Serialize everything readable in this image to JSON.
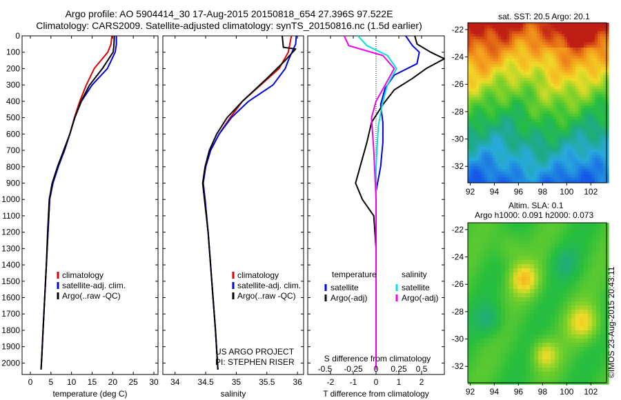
{
  "header": {
    "line1": "Argo profile: AO 5904414_30 17-Aug-2015 20150818_654 27.396S 97.522E",
    "line2": "Climatology: CARS2009. Satellite-adjusted climatology: synTS_20150816.nc (1.5d earlier)"
  },
  "colors": {
    "climatology": "#e00000",
    "satellite": "#0000dd",
    "argo": "#000000",
    "sat_salinity": "#00e0e0",
    "argo_salinity": "#ee00ee"
  },
  "chart_data": [
    {
      "type": "line",
      "id": "temperature",
      "xlabel": "temperature (deg C)",
      "ylabel": "",
      "xlim": [
        -2,
        31
      ],
      "ylim": [
        2070,
        0
      ],
      "xticks": [
        0,
        5,
        10,
        15,
        20,
        25,
        30
      ],
      "yticks": [
        0,
        100,
        200,
        300,
        400,
        500,
        600,
        700,
        800,
        900,
        1000,
        1100,
        1200,
        1300,
        1400,
        1500,
        1600,
        1700,
        1800,
        1900,
        2000
      ],
      "grid": false,
      "legend": [
        "climatology",
        "satellite-adj. clim.",
        "Argo(..raw -QC)"
      ],
      "series": [
        {
          "name": "climatology",
          "points": [
            [
              19.8,
              0
            ],
            [
              19.6,
              50
            ],
            [
              18.8,
              100
            ],
            [
              15.5,
              200
            ],
            [
              13.6,
              300
            ],
            [
              12.0,
              400
            ],
            [
              10.7,
              500
            ],
            [
              9.6,
              600
            ],
            [
              8.3,
              700
            ],
            [
              6.7,
              800
            ],
            [
              5.4,
              900
            ],
            [
              4.7,
              1000
            ],
            [
              4.3,
              1200
            ],
            [
              3.9,
              1400
            ],
            [
              3.5,
              1600
            ],
            [
              3.1,
              1800
            ],
            [
              2.8,
              1950
            ],
            [
              2.6,
              2040
            ]
          ]
        },
        {
          "name": "satellite-adj. clim.",
          "points": [
            [
              20.9,
              0
            ],
            [
              20.9,
              50
            ],
            [
              20.6,
              100
            ],
            [
              18.7,
              200
            ],
            [
              15.0,
              300
            ],
            [
              12.4,
              400
            ],
            [
              10.8,
              500
            ],
            [
              9.6,
              600
            ],
            [
              8.3,
              700
            ],
            [
              6.8,
              800
            ],
            [
              5.5,
              900
            ],
            [
              4.7,
              1000
            ],
            [
              4.3,
              1200
            ],
            [
              3.9,
              1400
            ],
            [
              3.5,
              1600
            ],
            [
              3.1,
              1800
            ],
            [
              2.8,
              1950
            ],
            [
              2.6,
              2040
            ]
          ]
        },
        {
          "name": "Argo(..raw -QC)",
          "points": [
            [
              20.4,
              0
            ],
            [
              20.3,
              60
            ],
            [
              20.1,
              100
            ],
            [
              17.5,
              200
            ],
            [
              14.4,
              300
            ],
            [
              12.3,
              400
            ],
            [
              10.8,
              500
            ],
            [
              9.6,
              600
            ],
            [
              8.1,
              700
            ],
            [
              6.6,
              800
            ],
            [
              5.3,
              900
            ],
            [
              4.6,
              1000
            ],
            [
              4.2,
              1200
            ],
            [
              3.9,
              1400
            ],
            [
              3.5,
              1600
            ],
            [
              3.1,
              1800
            ],
            [
              2.8,
              1950
            ],
            [
              2.6,
              2040
            ]
          ]
        }
      ]
    },
    {
      "type": "line",
      "id": "salinity",
      "xlabel": "salinity",
      "ylabel": "",
      "xlim": [
        33.8,
        36.1
      ],
      "ylim": [
        2070,
        0
      ],
      "xticks": [
        34,
        34.5,
        35,
        35.5,
        36
      ],
      "grid": false,
      "legend": [
        "climatology",
        "satellite-adj. clim.",
        "Argo(..raw -QC)"
      ],
      "annotation": [
        "US ARGO PROJECT",
        "PI: STEPHEN RISER"
      ],
      "series": [
        {
          "name": "climatology",
          "points": [
            [
              35.9,
              0
            ],
            [
              35.85,
              100
            ],
            [
              35.7,
              200
            ],
            [
              35.4,
              300
            ],
            [
              35.1,
              400
            ],
            [
              34.9,
              500
            ],
            [
              34.72,
              600
            ],
            [
              34.58,
              700
            ],
            [
              34.5,
              800
            ],
            [
              34.46,
              900
            ],
            [
              34.49,
              1000
            ],
            [
              34.54,
              1200
            ],
            [
              34.58,
              1400
            ],
            [
              34.62,
              1600
            ],
            [
              34.66,
              1800
            ],
            [
              34.7,
              2040
            ]
          ]
        },
        {
          "name": "satellite-adj. clim.",
          "points": [
            [
              35.98,
              0
            ],
            [
              35.97,
              50
            ],
            [
              35.85,
              150
            ],
            [
              35.8,
              200
            ],
            [
              35.6,
              300
            ],
            [
              35.2,
              400
            ],
            [
              34.92,
              500
            ],
            [
              34.72,
              600
            ],
            [
              34.58,
              700
            ],
            [
              34.5,
              800
            ],
            [
              34.46,
              900
            ],
            [
              34.49,
              1000
            ],
            [
              34.54,
              1200
            ],
            [
              34.58,
              1400
            ],
            [
              34.62,
              1600
            ],
            [
              34.66,
              1800
            ],
            [
              34.7,
              2040
            ]
          ]
        },
        {
          "name": "Argo(..raw -QC)",
          "points": [
            [
              35.75,
              0
            ],
            [
              35.77,
              70
            ],
            [
              35.97,
              80
            ],
            [
              35.8,
              150
            ],
            [
              35.5,
              260
            ],
            [
              35.1,
              400
            ],
            [
              34.85,
              500
            ],
            [
              34.68,
              600
            ],
            [
              34.56,
              700
            ],
            [
              34.49,
              800
            ],
            [
              34.45,
              900
            ],
            [
              34.48,
              1000
            ],
            [
              34.54,
              1200
            ],
            [
              34.58,
              1400
            ],
            [
              34.62,
              1600
            ],
            [
              34.66,
              1800
            ],
            [
              34.7,
              2040
            ]
          ]
        }
      ]
    },
    {
      "type": "line",
      "id": "differences",
      "xlabel": "T difference from climatology",
      "xlabel_top": "S difference from climatology",
      "xlim": [
        -3.0,
        3.0
      ],
      "ylim": [
        2070,
        0
      ],
      "xticks": [
        -2,
        -1,
        0,
        1,
        2
      ],
      "xtick_labels_top": [
        "-0.5",
        "-0.25",
        "0",
        "0.25",
        "0.5"
      ],
      "zero_line": "dotted",
      "grid": false,
      "legend_headers": [
        "temperature",
        "salinity"
      ],
      "legend": [
        "satellite",
        "Argo(-adj)",
        "satellite",
        "Argo(-adj)"
      ],
      "series": [
        {
          "name": "satellite",
          "group": "temperature",
          "points": [
            [
              1.3,
              0
            ],
            [
              1.6,
              60
            ],
            [
              1.9,
              100
            ],
            [
              1.8,
              170
            ],
            [
              0.8,
              240
            ],
            [
              0.4,
              320
            ],
            [
              0.2,
              420
            ],
            [
              0.3,
              530
            ],
            [
              0.3,
              650
            ],
            [
              0.2,
              800
            ],
            [
              0.0,
              950
            ],
            [
              0.0,
              1200
            ],
            [
              0.0,
              1500
            ],
            [
              0.0,
              2040
            ]
          ]
        },
        {
          "name": "Argo(-adj)",
          "group": "temperature",
          "points": [
            [
              1.7,
              0
            ],
            [
              1.8,
              50
            ],
            [
              2.4,
              100
            ],
            [
              3.0,
              140
            ],
            [
              2.2,
              200
            ],
            [
              1.6,
              260
            ],
            [
              0.8,
              330
            ],
            [
              0.3,
              420
            ],
            [
              -0.2,
              530
            ],
            [
              -0.4,
              650
            ],
            [
              -0.7,
              800
            ],
            [
              -0.9,
              900
            ],
            [
              -0.6,
              1000
            ],
            [
              -0.1,
              1100
            ],
            [
              0.0,
              1300
            ],
            [
              0.0,
              2040
            ]
          ]
        },
        {
          "name": "satellite",
          "group": "salinity",
          "points": [
            [
              -0.8,
              0
            ],
            [
              -0.4,
              60
            ],
            [
              0.5,
              120
            ],
            [
              0.9,
              200
            ],
            [
              0.5,
              300
            ],
            [
              0.3,
              400
            ],
            [
              0.1,
              550
            ],
            [
              0.0,
              800
            ],
            [
              0.0,
              1200
            ],
            [
              0.0,
              2040
            ]
          ]
        },
        {
          "name": "Argo(-adj)",
          "group": "salinity",
          "points": [
            [
              -1.4,
              0
            ],
            [
              -1.2,
              60
            ],
            [
              0.3,
              120
            ],
            [
              0.8,
              200
            ],
            [
              0.4,
              300
            ],
            [
              0.0,
              400
            ],
            [
              -0.2,
              500
            ],
            [
              -0.1,
              700
            ],
            [
              0.0,
              1000
            ],
            [
              0.0,
              2040
            ]
          ]
        }
      ]
    },
    {
      "type": "heatmap",
      "id": "sst-map",
      "title": "sat. SST: 20.5  Argo: 20.1",
      "xticks": [
        92,
        94,
        96,
        98,
        100,
        102
      ],
      "yticks": [
        -22,
        -24,
        -26,
        -28,
        -30,
        -32
      ],
      "xlim": [
        91.8,
        103.3
      ],
      "ylim": [
        -33.2,
        -21.5
      ]
    },
    {
      "type": "heatmap",
      "id": "sla-map",
      "title_line1": "Altim. SLA: 0.1",
      "title_line2": "Argo h1000: 0.091 h2000: 0.073",
      "xticks": [
        92,
        94,
        96,
        98,
        100,
        102
      ],
      "yticks": [
        -22,
        -24,
        -26,
        -28,
        -30,
        -32
      ],
      "xlim": [
        91.8,
        103.3
      ],
      "ylim": [
        -33.2,
        -21.5
      ]
    }
  ],
  "footer": {
    "credit": "©IMOS 23-Aug-2015 20:43:11"
  }
}
